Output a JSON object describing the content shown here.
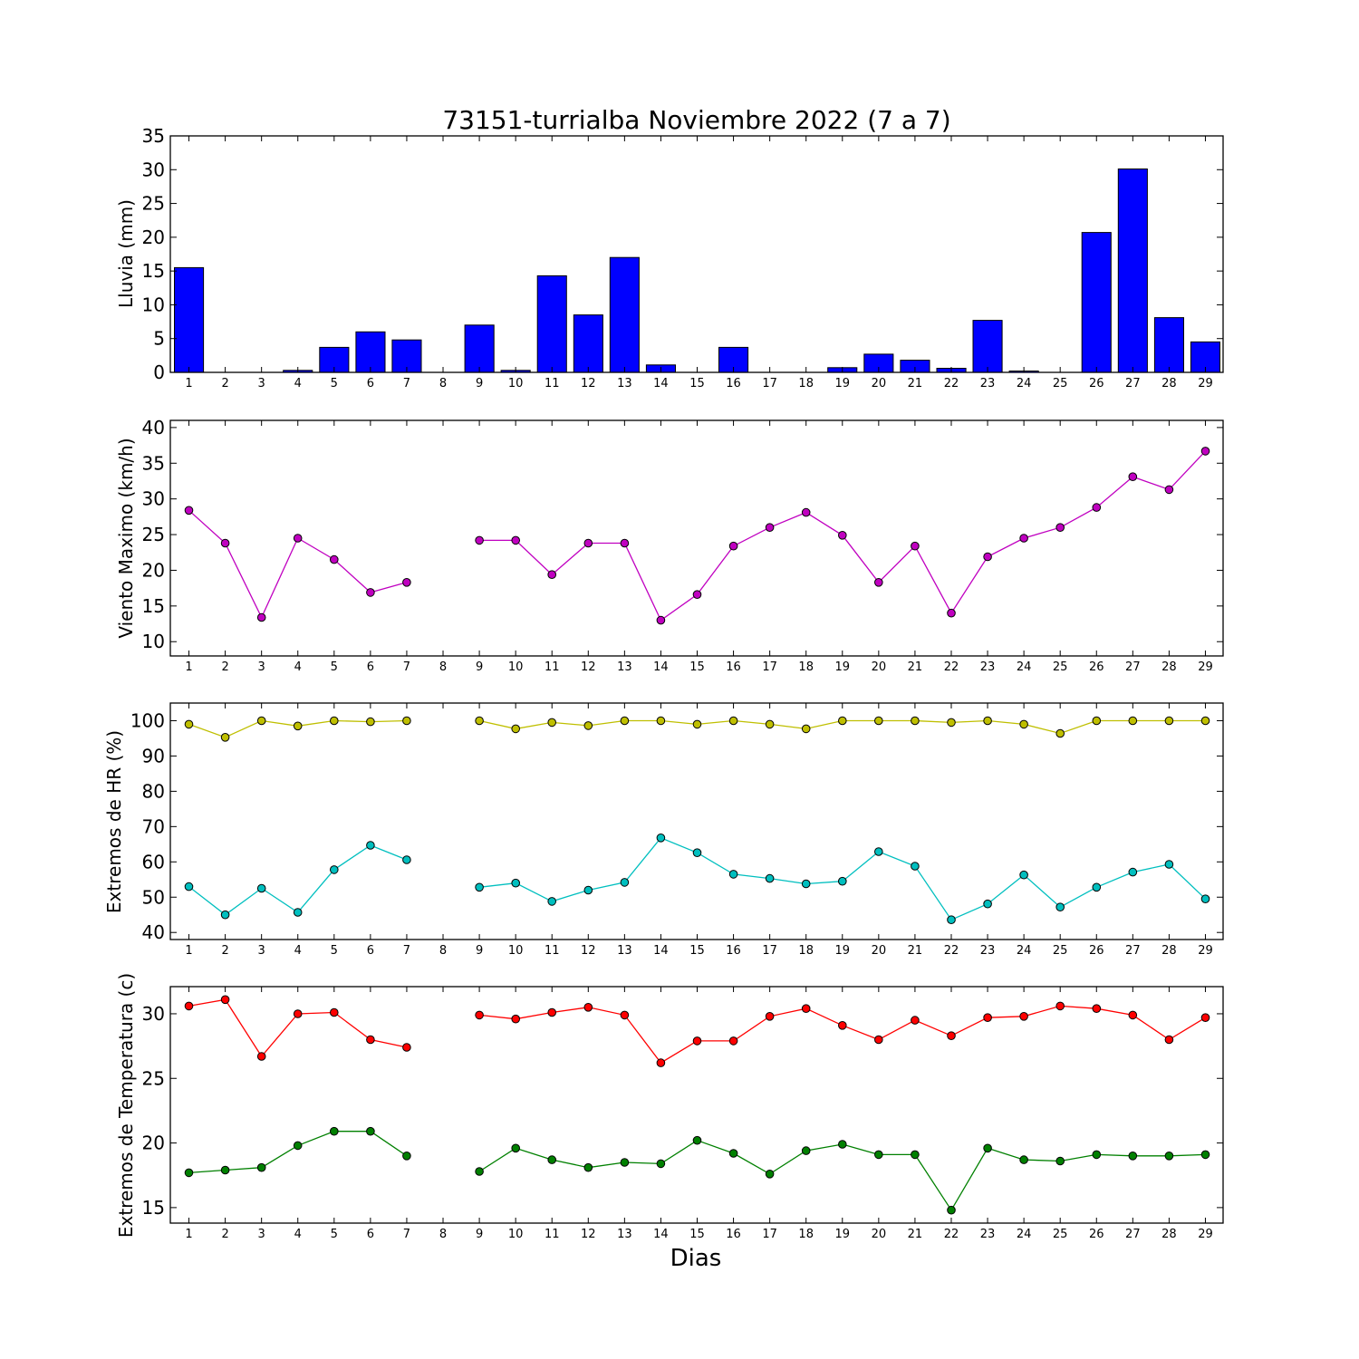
{
  "title": "73151-turrialba Noviembre 2022  (7 a 7)",
  "xlabel": "Dias",
  "x_tick_labels": [
    "1",
    "2",
    "3",
    "4",
    "5",
    "6",
    "7",
    "8",
    "9",
    "10",
    "11",
    "12",
    "13",
    "14",
    "15",
    "16",
    "17",
    "18",
    "19",
    "20",
    "21",
    "22",
    "23",
    "24",
    "25",
    "26",
    "27",
    "28",
    "29"
  ],
  "colors": {
    "rain": "#0000ff",
    "wind": "#c000c0",
    "hr_max": "#bfbf00",
    "hr_min": "#00bfbf",
    "temp_max": "#ff0000",
    "temp_min": "#008000"
  },
  "chart_data": [
    {
      "type": "bar",
      "ylabel": "Lluvia (mm)",
      "ylim": [
        0,
        35
      ],
      "yticks": [
        0,
        5,
        10,
        15,
        20,
        25,
        30,
        35
      ],
      "categories": [
        "1",
        "2",
        "3",
        "4",
        "5",
        "6",
        "7",
        "8",
        "9",
        "10",
        "11",
        "12",
        "13",
        "14",
        "15",
        "16",
        "17",
        "18",
        "19",
        "20",
        "21",
        "22",
        "23",
        "24",
        "25",
        "26",
        "27",
        "28",
        "29"
      ],
      "values": [
        15.5,
        0,
        0,
        0.3,
        3.7,
        6.0,
        4.8,
        null,
        7.0,
        0.3,
        14.3,
        8.5,
        17.0,
        1.1,
        0,
        3.7,
        0,
        0,
        0.7,
        2.7,
        1.8,
        0.6,
        7.7,
        0.2,
        0,
        20.7,
        30.1,
        8.1,
        4.5
      ],
      "grid": false
    },
    {
      "type": "line",
      "ylabel": "Viento Maximo (km/h)",
      "ylim": [
        8,
        41
      ],
      "yticks": [
        10,
        15,
        20,
        25,
        30,
        35,
        40
      ],
      "series": [
        {
          "values": [
            28.4,
            23.8,
            13.4,
            24.5,
            21.5,
            16.9,
            18.3,
            null,
            24.2,
            24.2,
            19.4,
            23.8,
            23.8,
            13.0,
            16.6,
            23.4,
            26.0,
            28.1,
            24.9,
            18.3,
            23.4,
            14.0,
            21.9,
            24.5,
            26.0,
            28.8,
            33.1,
            31.3,
            36.7
          ]
        }
      ],
      "grid": false
    },
    {
      "type": "line",
      "ylabel": "Extremos de HR (%)",
      "ylim": [
        38,
        105
      ],
      "yticks": [
        40,
        50,
        60,
        70,
        80,
        90,
        100
      ],
      "series": [
        {
          "values": [
            99.0,
            95.3,
            100.0,
            98.5,
            100.0,
            99.7,
            100.0,
            null,
            100.0,
            97.7,
            99.5,
            98.6,
            100.0,
            100.0,
            99.0,
            100.0,
            99.0,
            97.7,
            100.0,
            100.0,
            100.0,
            99.5,
            100.0,
            99.0,
            96.4,
            100.0,
            100.0,
            100.0,
            100.0
          ]
        },
        {
          "values": [
            53.0,
            45.0,
            52.5,
            45.7,
            57.8,
            64.7,
            60.6,
            null,
            52.8,
            54.0,
            48.8,
            52.0,
            54.2,
            66.8,
            62.6,
            56.5,
            55.3,
            53.8,
            54.5,
            62.9,
            58.8,
            43.6,
            48.1,
            56.3,
            47.2,
            52.8,
            57.1,
            59.3,
            49.5
          ]
        }
      ],
      "grid": false
    },
    {
      "type": "line",
      "ylabel": "Extremos de Temperatura (c)",
      "ylim": [
        13.8,
        32.1
      ],
      "yticks": [
        15,
        20,
        25,
        30
      ],
      "series": [
        {
          "values": [
            30.6,
            31.1,
            26.7,
            30.0,
            30.1,
            28.0,
            27.4,
            null,
            29.9,
            29.6,
            30.1,
            30.5,
            29.9,
            26.2,
            27.9,
            27.9,
            29.8,
            30.4,
            29.1,
            28.0,
            29.5,
            28.3,
            29.7,
            29.8,
            30.6,
            30.4,
            29.9,
            28.0,
            29.7
          ]
        },
        {
          "values": [
            17.7,
            17.9,
            18.1,
            19.8,
            20.9,
            20.9,
            19.0,
            null,
            17.8,
            19.6,
            18.7,
            18.1,
            18.5,
            18.4,
            20.2,
            19.2,
            17.6,
            19.4,
            19.9,
            19.1,
            19.1,
            14.8,
            19.6,
            18.7,
            18.6,
            19.1,
            19.0,
            19.0,
            19.1
          ]
        }
      ],
      "grid": false
    }
  ]
}
